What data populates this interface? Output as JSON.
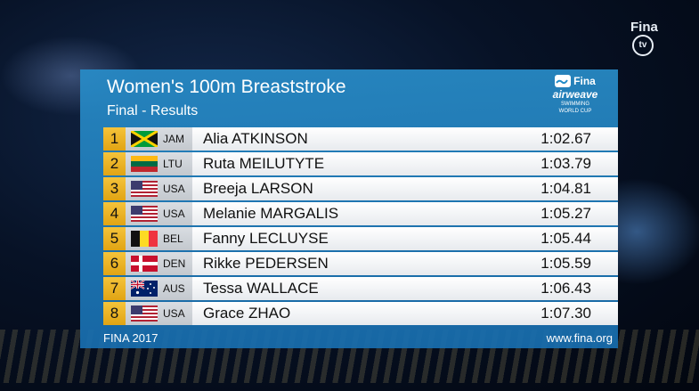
{
  "broadcaster": {
    "logo_text": "Fina",
    "tv_text": "tv"
  },
  "header": {
    "title": "Women's 100m Breaststroke",
    "subtitle": "Final - Results"
  },
  "sponsor": {
    "fina": "Fina",
    "airweave": "airweave",
    "line1": "SWIMMING",
    "line2": "WORLD CUP"
  },
  "results": [
    {
      "rank": "1",
      "country": "JAM",
      "name": "Alia ATKINSON",
      "time": "1:02.67"
    },
    {
      "rank": "2",
      "country": "LTU",
      "name": "Ruta MEILUTYTE",
      "time": "1:03.79"
    },
    {
      "rank": "3",
      "country": "USA",
      "name": "Breeja LARSON",
      "time": "1:04.81"
    },
    {
      "rank": "4",
      "country": "USA",
      "name": "Melanie MARGALIS",
      "time": "1:05.27"
    },
    {
      "rank": "5",
      "country": "BEL",
      "name": "Fanny LECLUYSE",
      "time": "1:05.44"
    },
    {
      "rank": "6",
      "country": "DEN",
      "name": "Rikke PEDERSEN",
      "time": "1:05.59"
    },
    {
      "rank": "7",
      "country": "AUS",
      "name": "Tessa WALLACE",
      "time": "1:06.43"
    },
    {
      "rank": "8",
      "country": "USA",
      "name": "Grace ZHAO",
      "time": "1:07.30"
    }
  ],
  "footer": {
    "left": "FINA 2017",
    "right": "www.fina.org"
  },
  "colors": {
    "rank_gold": "#f0b92a",
    "panel_blue": "#238cc8"
  }
}
